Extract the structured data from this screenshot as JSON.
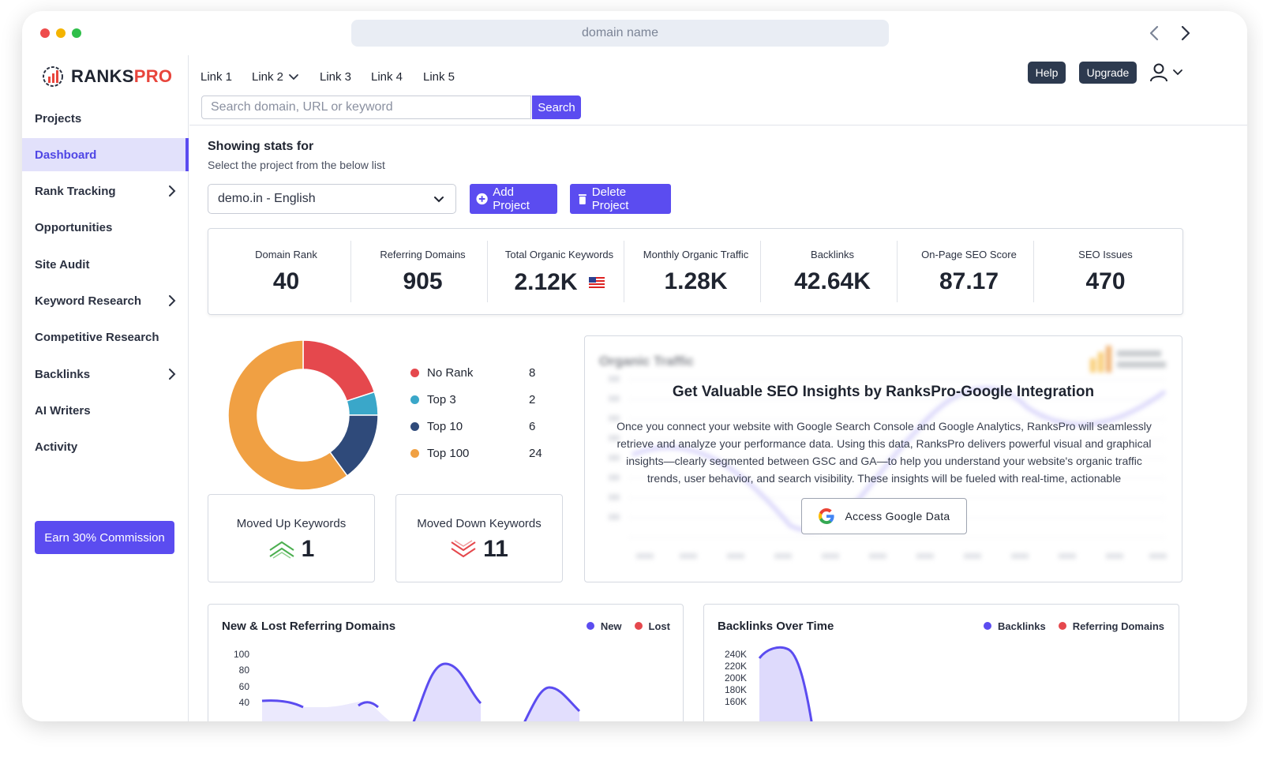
{
  "browser": {
    "url_placeholder": "domain name"
  },
  "brand": {
    "name_part1": "RANKS",
    "name_part2": "PRO",
    "accent": "#e8453c"
  },
  "sidebar": {
    "items": [
      {
        "label": "Projects"
      },
      {
        "label": "Dashboard"
      },
      {
        "label": "Rank Tracking"
      },
      {
        "label": "Opportunities"
      },
      {
        "label": "Site Audit"
      },
      {
        "label": "Keyword Research"
      },
      {
        "label": "Competitive Research"
      },
      {
        "label": "Backlinks"
      },
      {
        "label": "AI Writers"
      },
      {
        "label": "Activity"
      }
    ],
    "cta": "Earn 30% Commission"
  },
  "topnav": {
    "links": [
      "Link 1",
      "Link 2",
      "Link 3",
      "Link 4",
      "Link 5"
    ],
    "help": "Help",
    "upgrade": "Upgrade"
  },
  "search": {
    "placeholder": "Search domain, URL or keyword",
    "button": "Search"
  },
  "project": {
    "heading": "Showing stats for",
    "subheading": "Select the project from the below list",
    "selected": "demo.in - English",
    "add": "Add Project",
    "delete": "Delete Project"
  },
  "stats": [
    {
      "label": "Domain Rank",
      "value": "40"
    },
    {
      "label": "Referring Domains",
      "value": "905"
    },
    {
      "label": "Total Organic Keywords",
      "value": "2.12K"
    },
    {
      "label": "Monthly Organic Traffic",
      "value": "1.28K"
    },
    {
      "label": "Backlinks",
      "value": "42.64K"
    },
    {
      "label": "On-Page SEO Score",
      "value": "87.17"
    },
    {
      "label": "SEO Issues",
      "value": "470"
    }
  ],
  "rank_distribution": {
    "chart_data": {
      "type": "pie",
      "categories": [
        "No Rank",
        "Top 3",
        "Top 10",
        "Top 100"
      ],
      "values": [
        8,
        2,
        6,
        24
      ],
      "colors": [
        "#e5484d",
        "#3aa7c9",
        "#2f4a7a",
        "#f0a043"
      ]
    },
    "legend": [
      {
        "label": "No Rank",
        "value": "8",
        "color": "#e5484d"
      },
      {
        "label": "Top 3",
        "value": "2",
        "color": "#3aa7c9"
      },
      {
        "label": "Top 10",
        "value": "6",
        "color": "#2f4a7a"
      },
      {
        "label": "Top 100",
        "value": "24",
        "color": "#f0a043"
      }
    ]
  },
  "movement": {
    "up_label": "Moved Up Keywords",
    "up_value": "1",
    "down_label": "Moved Down Keywords",
    "down_value": "11"
  },
  "google": {
    "title": "Get Valuable SEO Insights by RanksPro-Google Integration",
    "text": "Once you connect your website with Google Search Console and Google Analytics, RanksPro will seamlessly retrieve and analyze your performance data. Using this data, RanksPro delivers powerful visual and graphical insights—clearly segmented between GSC and GA—to help you understand your website's organic traffic trends, user behavior, and search visibility. These insights will be fueled with real-time, actionable",
    "button": "Access Google Data",
    "blur_title": "Organic Traffic"
  },
  "referring_chart": {
    "title": "New & Lost Referring Domains",
    "legend": [
      {
        "label": "New",
        "color": "#5b4cf0"
      },
      {
        "label": "Lost",
        "color": "#e5484d"
      }
    ],
    "y_ticks": [
      "100",
      "80",
      "60",
      "40"
    ]
  },
  "backlinks_chart": {
    "title": "Backlinks Over Time",
    "legend": [
      {
        "label": "Backlinks",
        "color": "#5b4cf0"
      },
      {
        "label": "Referring Domains",
        "color": "#e5484d"
      }
    ],
    "y_ticks": [
      "240K",
      "220K",
      "200K",
      "180K",
      "160K"
    ]
  },
  "colors": {
    "primary": "#5b4cf0",
    "dark_button": "#2d3a4f",
    "up": "#4caf50",
    "down": "#e5484d"
  }
}
